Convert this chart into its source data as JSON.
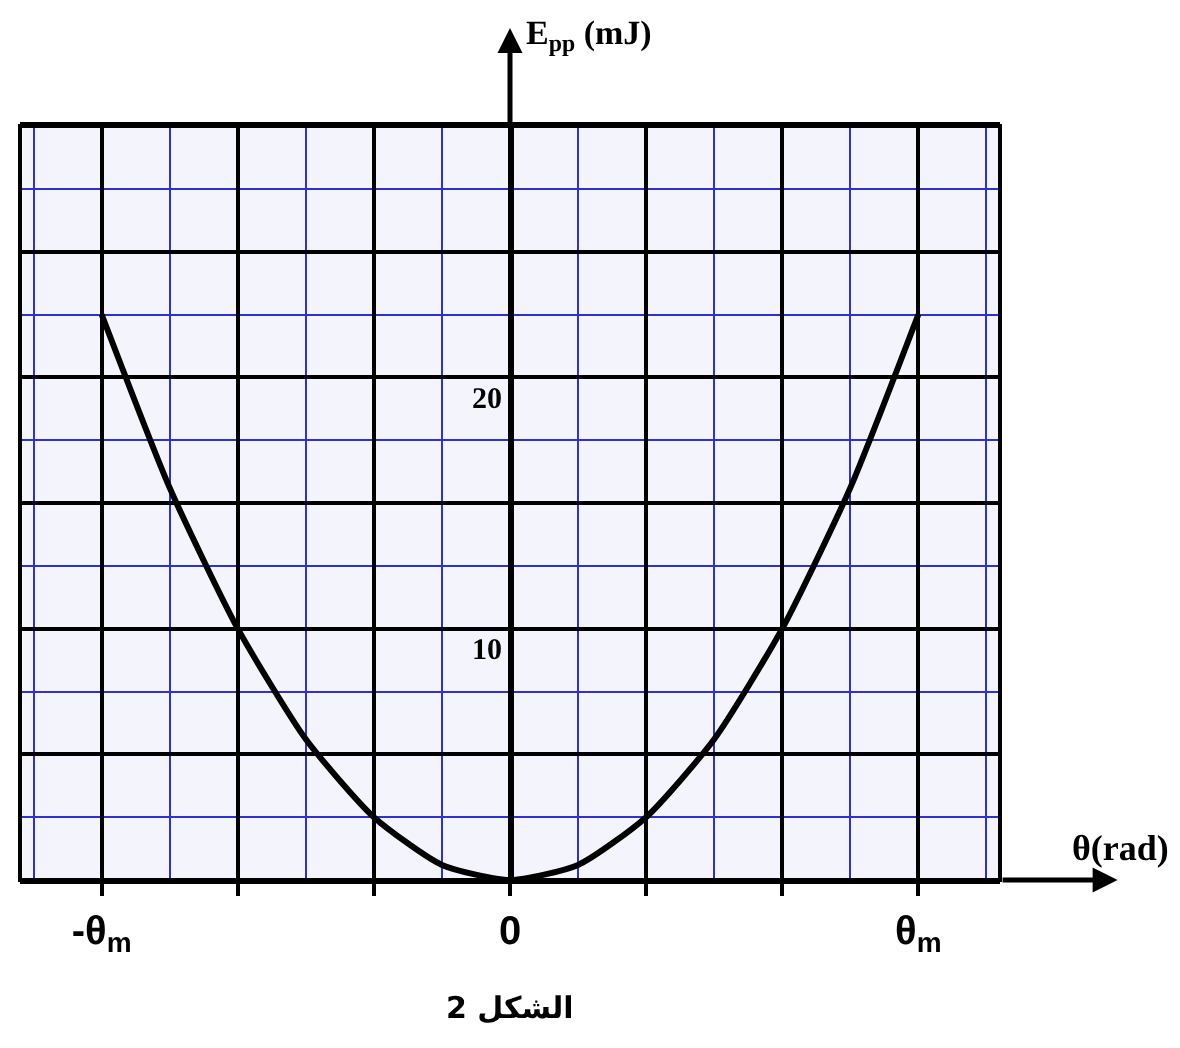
{
  "chart_data": {
    "type": "line",
    "xlabel": "θ(rad)",
    "ylabel": "E$_{pp}$ (mJ)",
    "categories": [
      "-θ$_{m}$",
      null,
      null,
      null,
      null,
      null,
      "0",
      null,
      null,
      null,
      null,
      null,
      "θ$_{m}$"
    ],
    "series": [
      {
        "color": "#000000",
        "values": [
          22.5,
          15.6,
          10.0,
          5.6,
          2.5,
          0.6,
          0,
          0.6,
          2.5,
          5.6,
          10.0,
          15.6,
          22.5
        ]
      }
    ],
    "ylim": [
      0,
      30
    ],
    "yticks": [
      {
        "value": 0,
        "label": null
      },
      {
        "value": 5,
        "label": null
      },
      10,
      {
        "value": 15,
        "label": null
      },
      20,
      {
        "value": 25,
        "label": null
      },
      {
        "value": 30,
        "label": null
      }
    ],
    "grid": true,
    "marker": "none",
    "line_style": "solid",
    "annotations": [
      "الشكل 2"
    ]
  }
}
